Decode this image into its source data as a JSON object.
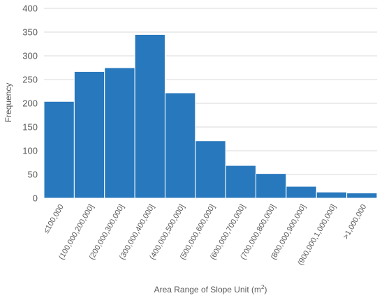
{
  "chart_data": {
    "type": "bar",
    "categories": [
      "≤100,000",
      "(100,000,200,000]",
      "(200,000,300,000]",
      "(300,000,400,000]",
      "(400,000,500,000]",
      "(500,000,600,000]",
      "(600,000,700,000]",
      "(700,000,800,000]",
      "(800,000,900,000]",
      "(900,000,1,000,000]",
      ">1,000,000"
    ],
    "values": [
      204,
      267,
      275,
      345,
      222,
      121,
      69,
      52,
      25,
      13,
      11
    ],
    "xlabel": "Area Range of Slope Unit (m²)",
    "ylabel": "Frequency",
    "ylim": [
      0,
      400
    ],
    "yticks": [
      0,
      50,
      100,
      150,
      200,
      250,
      300,
      350,
      400
    ],
    "grid": true,
    "legend": "none",
    "colors": {
      "bar": "#2878bd",
      "bar_edge": "#ffffff",
      "grid": "#d9d9d9",
      "text": "#595959"
    }
  }
}
